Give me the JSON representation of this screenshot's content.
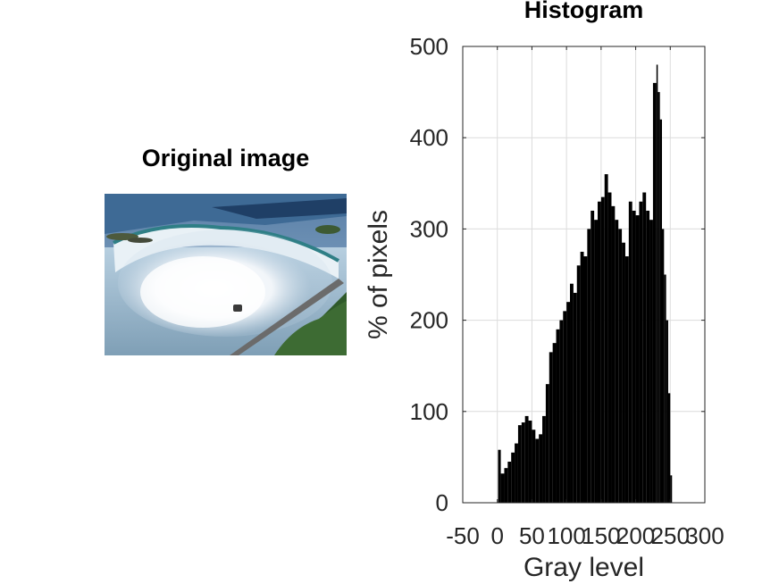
{
  "left_panel": {
    "title": "Original image",
    "image_icon": "waterfall-photo"
  },
  "chart_data": {
    "type": "bar",
    "title": "Histogram",
    "xlabel": "Gray level",
    "ylabel": "% of pixels",
    "xlim": [
      -50,
      300
    ],
    "ylim": [
      0,
      500
    ],
    "xticks": [
      "-50",
      "0",
      "50",
      "100",
      "150",
      "200",
      "250",
      "300"
    ],
    "yticks": [
      "0",
      "100",
      "200",
      "300",
      "400",
      "500"
    ],
    "grid": true,
    "bar_color": "#000000",
    "x": [
      1,
      5,
      10,
      15,
      20,
      25,
      30,
      35,
      40,
      45,
      50,
      55,
      60,
      65,
      70,
      75,
      80,
      85,
      90,
      95,
      100,
      105,
      110,
      115,
      120,
      125,
      130,
      135,
      140,
      145,
      150,
      155,
      160,
      165,
      170,
      175,
      180,
      185,
      190,
      195,
      200,
      205,
      210,
      215,
      220,
      225,
      230,
      232,
      235,
      238,
      241,
      244,
      247,
      250
    ],
    "values": [
      58,
      32,
      38,
      45,
      55,
      65,
      85,
      88,
      95,
      90,
      80,
      70,
      75,
      95,
      130,
      165,
      175,
      190,
      200,
      210,
      220,
      240,
      230,
      260,
      275,
      270,
      300,
      320,
      310,
      330,
      335,
      360,
      340,
      325,
      310,
      300,
      285,
      270,
      330,
      320,
      315,
      330,
      340,
      320,
      310,
      460,
      480,
      450,
      420,
      300,
      250,
      200,
      120,
      30
    ]
  }
}
